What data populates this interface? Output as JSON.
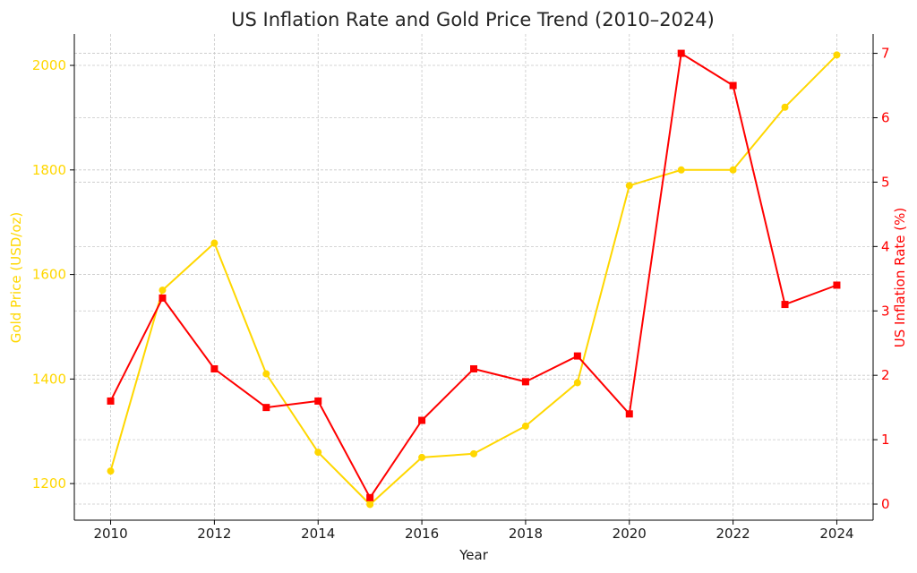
{
  "chart_data": {
    "type": "line",
    "title": "US Inflation Rate and Gold Price Trend (2010–2024)",
    "xlabel": "Year",
    "ylabel_left": "Gold Price (USD/oz)",
    "ylabel_right": "US Inflation Rate (%)",
    "x": [
      2010,
      2011,
      2012,
      2013,
      2014,
      2015,
      2016,
      2017,
      2018,
      2019,
      2020,
      2021,
      2022,
      2023,
      2024
    ],
    "x_ticks": [
      "2010",
      "2012",
      "2014",
      "2016",
      "2018",
      "2020",
      "2022",
      "2024"
    ],
    "xlim": [
      2009.3,
      2024.7
    ],
    "y_left_ticks": [
      "1200",
      "1400",
      "1600",
      "1800",
      "2000"
    ],
    "ylim_left": [
      1130,
      2060
    ],
    "y_right_ticks": [
      "0",
      "1",
      "2",
      "3",
      "4",
      "5",
      "6",
      "7"
    ],
    "ylim_right": [
      -0.25,
      7.3
    ],
    "grid": true,
    "series": [
      {
        "axis": "left",
        "color": "#FFD700",
        "marker": "circle",
        "values": [
          1224,
          1570,
          1660,
          1410,
          1260,
          1160,
          1250,
          1257,
          1310,
          1393,
          1770,
          1800,
          1800,
          1920,
          2020
        ]
      },
      {
        "axis": "right",
        "color": "#FF0000",
        "marker": "square",
        "values": [
          1.6,
          3.2,
          2.1,
          1.5,
          1.6,
          0.1,
          1.3,
          2.1,
          1.9,
          2.3,
          1.4,
          7.0,
          6.5,
          3.1,
          3.4
        ]
      }
    ]
  }
}
